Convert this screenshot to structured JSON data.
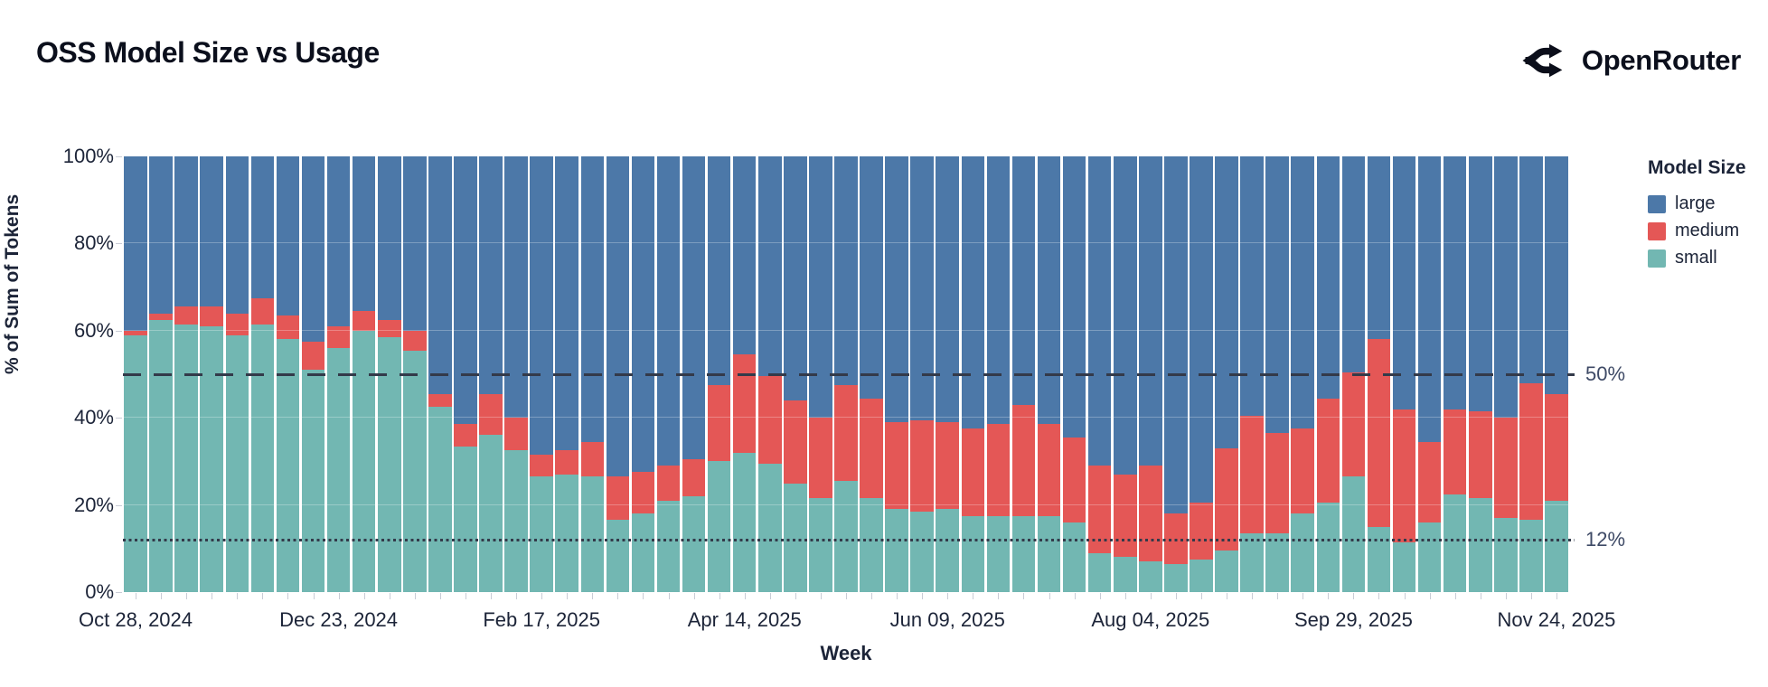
{
  "header": {
    "title": "OSS Model Size vs Usage",
    "brand": "OpenRouter"
  },
  "colors": {
    "large": "#4c78a8",
    "medium": "#e45756",
    "small": "#72b7b2",
    "rule_line": "#333a4a",
    "text_dark": "#1c2438",
    "rule_label": "#3e4a66"
  },
  "legend": {
    "title": "Model Size",
    "items": [
      {
        "label": "large",
        "color": "#4c78a8"
      },
      {
        "label": "medium",
        "color": "#e45756"
      },
      {
        "label": "small",
        "color": "#72b7b2"
      }
    ]
  },
  "chart_data": {
    "type": "bar",
    "stacked": true,
    "title": "OSS Model Size vs Usage",
    "xlabel": "Week",
    "ylabel": "% of Sum of Tokens",
    "ylim": [
      0,
      100
    ],
    "unit": "percent",
    "grid": "subtle",
    "legend_position": "right",
    "y_ticks": [
      {
        "value": 0,
        "label": "0%"
      },
      {
        "value": 20,
        "label": "20%"
      },
      {
        "value": 40,
        "label": "40%"
      },
      {
        "value": 60,
        "label": "60%"
      },
      {
        "value": 80,
        "label": "80%"
      },
      {
        "value": 100,
        "label": "100%"
      }
    ],
    "y_gridlines": [
      20,
      40,
      60,
      80
    ],
    "x_tick_indices": [
      0,
      8,
      16,
      24,
      32,
      40,
      48,
      56
    ],
    "x_tick_labels": [
      "Oct 28, 2024",
      "Dec 23, 2024",
      "Feb 17, 2025",
      "Apr 14, 2025",
      "Jun 09, 2025",
      "Aug 04, 2025",
      "Sep 29, 2025",
      "Nov 24, 2025"
    ],
    "weeks": [
      "2024-10-28",
      "2024-11-04",
      "2024-11-11",
      "2024-11-18",
      "2024-11-25",
      "2024-12-02",
      "2024-12-09",
      "2024-12-16",
      "2024-12-23",
      "2024-12-30",
      "2025-01-06",
      "2025-01-13",
      "2025-01-20",
      "2025-01-27",
      "2025-02-03",
      "2025-02-10",
      "2025-02-17",
      "2025-02-24",
      "2025-03-03",
      "2025-03-10",
      "2025-03-17",
      "2025-03-24",
      "2025-03-31",
      "2025-04-07",
      "2025-04-14",
      "2025-04-21",
      "2025-04-28",
      "2025-05-05",
      "2025-05-12",
      "2025-05-19",
      "2025-05-26",
      "2025-06-02",
      "2025-06-09",
      "2025-06-16",
      "2025-06-23",
      "2025-06-30",
      "2025-07-07",
      "2025-07-14",
      "2025-07-21",
      "2025-07-28",
      "2025-08-04",
      "2025-08-11",
      "2025-08-18",
      "2025-08-25",
      "2025-09-01",
      "2025-09-08",
      "2025-09-15",
      "2025-09-22",
      "2025-09-29",
      "2025-10-06",
      "2025-10-13",
      "2025-10-20",
      "2025-10-27",
      "2025-11-03",
      "2025-11-10",
      "2025-11-17",
      "2025-11-24"
    ],
    "series": [
      {
        "name": "small",
        "color": "#72b7b2",
        "values": [
          59,
          62.5,
          61.5,
          61,
          59,
          61.5,
          58,
          51,
          56,
          60,
          58.5,
          55.5,
          42.5,
          33.5,
          36,
          32.5,
          26.5,
          27,
          26.5,
          16.5,
          18,
          21,
          22,
          30,
          32,
          29.5,
          25,
          21.5,
          25.5,
          21.5,
          19,
          18.5,
          19,
          17.5,
          17.5,
          17.5,
          17.5,
          16,
          9,
          8,
          7,
          6.5,
          7.5,
          9.5,
          13.5,
          13.5,
          18,
          20.5,
          26.5,
          15,
          11.5,
          16,
          22.5,
          21.5,
          17,
          16.5,
          21
        ]
      },
      {
        "name": "medium",
        "color": "#e45756",
        "values": [
          1,
          1.5,
          4,
          4.5,
          5,
          6,
          5.5,
          6.5,
          5,
          4.5,
          4,
          4.5,
          3,
          5,
          9.5,
          7.5,
          5,
          5.5,
          8,
          10,
          9.5,
          8,
          8.5,
          17.5,
          22.5,
          20,
          19,
          18.5,
          22,
          23,
          20,
          21,
          20,
          20,
          21,
          25.5,
          21,
          19.5,
          20,
          19,
          22,
          11.5,
          13,
          23.5,
          27,
          23,
          19.5,
          24,
          24,
          43,
          30.5,
          18.5,
          19.5,
          20,
          23,
          31.5,
          24.5
        ]
      },
      {
        "name": "large",
        "color": "#4c78a8",
        "values": [
          40,
          36,
          34.5,
          34.5,
          36,
          32.5,
          36.5,
          42.5,
          39,
          35.5,
          37.5,
          40,
          54.5,
          61.5,
          54.5,
          60,
          68.5,
          67.5,
          65.5,
          73.5,
          72.5,
          71,
          69.5,
          52.5,
          45.5,
          50.5,
          56,
          60,
          52.5,
          55.5,
          61,
          60.5,
          61,
          62.5,
          61.5,
          57,
          61.5,
          64.5,
          71,
          73,
          71,
          82,
          79.5,
          67,
          59.5,
          63.5,
          62.5,
          55.5,
          49.5,
          42,
          58,
          65.5,
          58,
          58.5,
          60,
          52,
          54.5
        ]
      }
    ],
    "rules": [
      {
        "label": "50%",
        "value": 50,
        "style": "dashed"
      },
      {
        "label": "12%",
        "value": 12,
        "style": "dotted"
      }
    ]
  }
}
